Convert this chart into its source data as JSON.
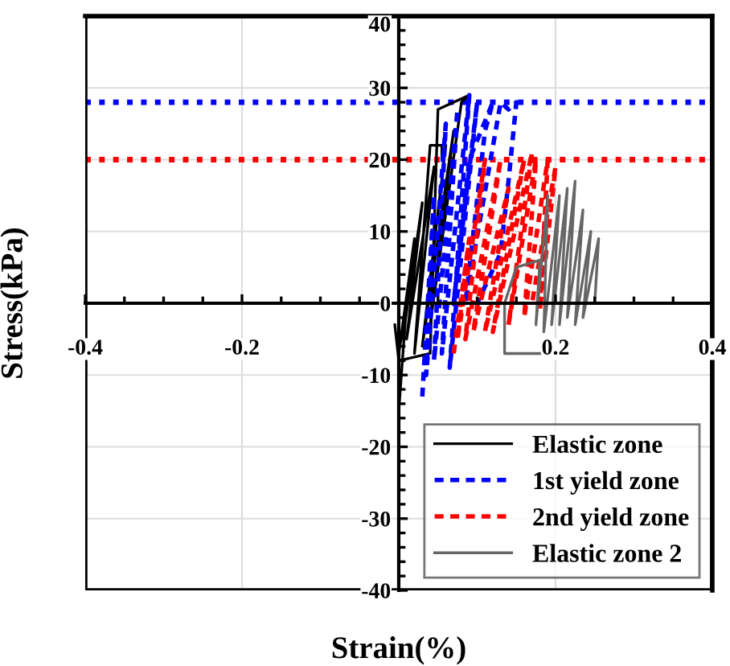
{
  "chart_data": {
    "type": "line",
    "xlabel": "Strain(%)",
    "ylabel": "Stress(kPa)",
    "xlim": [
      -0.4,
      0.4
    ],
    "ylim": [
      -40,
      40
    ],
    "xticks": [
      -0.4,
      -0.2,
      {
        "value": 0,
        "label": null
      },
      0.2,
      0.4
    ],
    "yticks": [
      -40,
      -30,
      -20,
      -10,
      0,
      10,
      20,
      30,
      40
    ],
    "grid": true,
    "legend": "bottom right",
    "ref_lines": [
      {
        "axis": "y",
        "value": 28,
        "color": "#0000ff",
        "line_style": "dotted"
      },
      {
        "axis": "y",
        "value": 20,
        "color": "#ff0000",
        "line_style": "dotted"
      }
    ],
    "series": [
      {
        "name": "Elastic zone",
        "color": "#000000",
        "line_style": "solid",
        "x": [
          0.0,
          0.01,
          0.0,
          0.02,
          0.005,
          0.03,
          0.01,
          0.045,
          0.02,
          0.04,
          0.055,
          0.055,
          0.06,
          0.03,
          0.07,
          0.04,
          0.08,
          0.09,
          0.05,
          0.04,
          0.0,
          -0.005
        ],
        "values": [
          -15,
          0,
          -7,
          9,
          -5,
          14,
          -5,
          19,
          -7,
          22,
          22,
          20,
          22,
          -6,
          24,
          -3,
          28,
          29,
          27,
          -7,
          -8,
          -3
        ]
      },
      {
        "name": "1st yield zone",
        "color": "#0000ff",
        "line_style": "dashed",
        "x": [
          0.03,
          0.045,
          0.035,
          0.06,
          0.045,
          0.075,
          0.055,
          0.09,
          0.065,
          0.1,
          0.07,
          0.09,
          0.12,
          0.11,
          0.085,
          0.13,
          0.14,
          0.15,
          0.14,
          0.13,
          0.1
        ],
        "values": [
          -13,
          15,
          -10,
          25,
          -8,
          27,
          -7,
          29,
          -9,
          28,
          0,
          20,
          28,
          24,
          0,
          28,
          27,
          28,
          17,
          7,
          0
        ]
      },
      {
        "name": "2nd yield zone",
        "color": "#ff0000",
        "line_style": "dashed",
        "x": [
          0.07,
          0.09,
          0.075,
          0.11,
          0.085,
          0.13,
          0.095,
          0.14,
          0.11,
          0.16,
          0.12,
          0.17,
          0.14,
          0.175,
          0.16,
          0.19,
          0.18,
          0.2,
          0.17
        ],
        "values": [
          -7,
          9,
          -5,
          20,
          -5,
          20,
          -4,
          16,
          -4,
          20,
          -4,
          21,
          -3,
          20,
          -2,
          20,
          -1,
          19,
          0
        ]
      },
      {
        "name": "Elastic zone 2",
        "color": "#666666",
        "line_style": "solid",
        "x": [
          0.185,
          0.135,
          0.135,
          0.15,
          0.18,
          0.175,
          0.19,
          0.185,
          0.205,
          0.195,
          0.215,
          0.205,
          0.225,
          0.215,
          0.235,
          0.225,
          0.245,
          0.235,
          0.255,
          0.25
        ],
        "values": [
          -7,
          -7,
          0,
          5,
          6,
          -3,
          15,
          -4,
          15,
          -3,
          16,
          -3,
          17,
          -2,
          13,
          -3,
          10,
          -2,
          9,
          0
        ]
      }
    ]
  }
}
